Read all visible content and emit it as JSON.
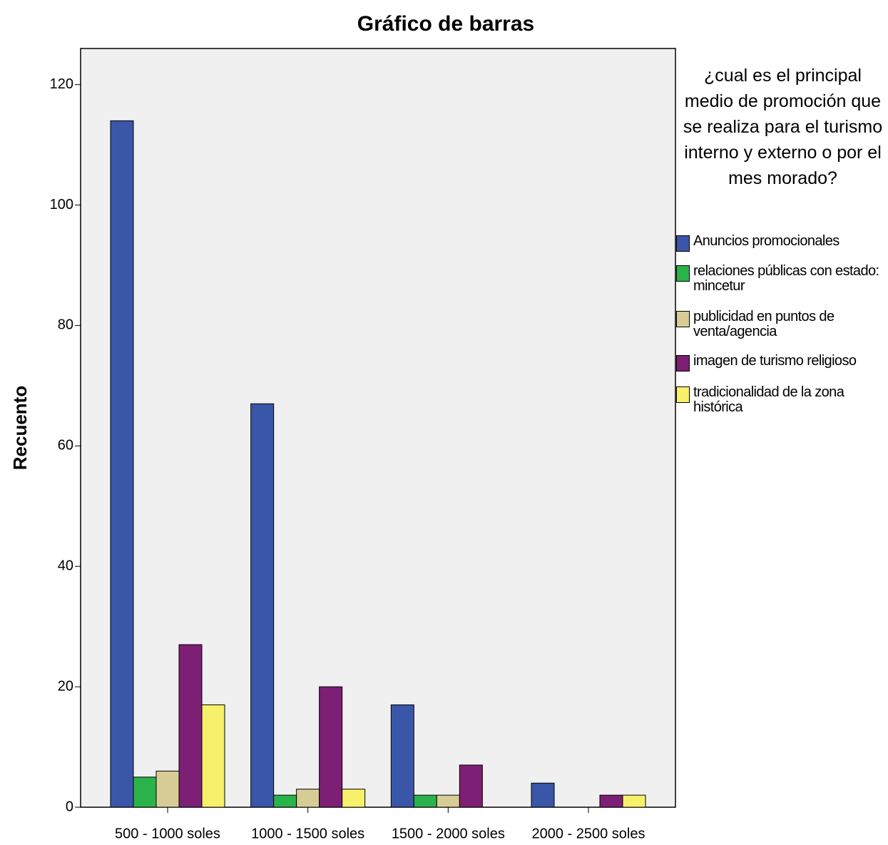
{
  "chart_data": {
    "type": "bar",
    "title": "Gráfico de barras",
    "y_label": "Recuento",
    "legend_title": "¿cual es el principal medio de promoción que se realiza para el turismo interno y externo o por el mes morado?",
    "categories": [
      "500 - 1000 soles",
      "1000 - 1500 soles",
      "1500 - 2000 soles",
      "2000 - 2500 soles"
    ],
    "series": [
      {
        "name": "Anuncios promocionales",
        "color": "#3a56a8",
        "values": [
          114,
          67,
          17,
          4
        ]
      },
      {
        "name": "relaciones públicas con estado: mincetur",
        "color": "#2ab34a",
        "values": [
          5,
          2,
          2,
          0
        ]
      },
      {
        "name": "publicidad en puntos de venta/agencia",
        "color": "#d8cc96",
        "values": [
          6,
          3,
          2,
          0
        ]
      },
      {
        "name": "imagen de turismo religioso",
        "color": "#7d1f74",
        "values": [
          27,
          20,
          7,
          2
        ]
      },
      {
        "name": "tradicionalidad de la zona histórica",
        "color": "#f7f06b",
        "values": [
          17,
          3,
          0,
          2
        ]
      }
    ],
    "ylim": [
      0,
      126
    ],
    "yticks": [
      0,
      20,
      40,
      60,
      80,
      100,
      120
    ],
    "legend": "right"
  }
}
